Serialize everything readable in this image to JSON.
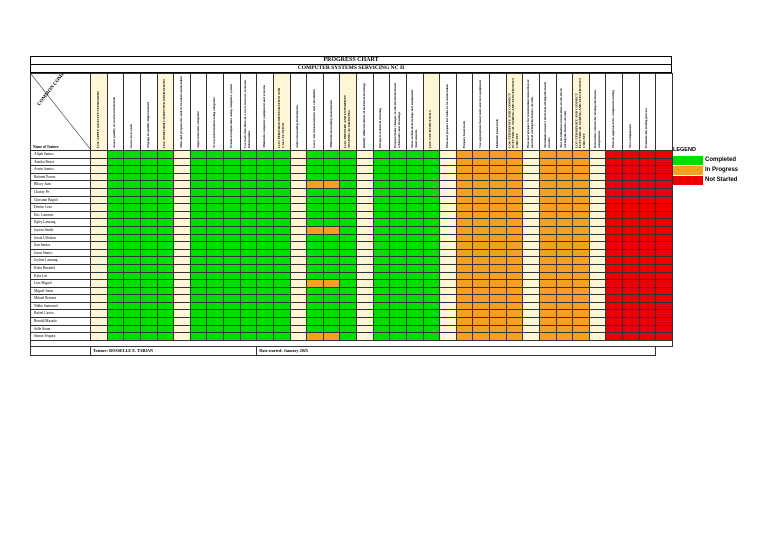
{
  "title": "PROGRESS CHART",
  "subtitle": "COMPUTER SYSTEMS SERVICING NC II",
  "corner_label": "COMMON COMPETENCIES",
  "name_header": "Name of Trainee",
  "columns": [
    {
      "label": "LO1: APPLY QUALITY STANDARDS",
      "unit": true,
      "block": "y"
    },
    {
      "label": "Assess quality of received materials",
      "unit": false,
      "block": "g"
    },
    {
      "label": "Assess own work",
      "unit": false,
      "block": "g"
    },
    {
      "label": "Engage in quality improvement",
      "unit": false,
      "block": "g"
    },
    {
      "label": "LO2: PERFORM COMPUTER OPERATIONS",
      "unit": true,
      "block": "g"
    },
    {
      "label": "Plan and prepare for task to be taken undertaken",
      "unit": false,
      "block": "y"
    },
    {
      "label": "Input data into computer",
      "unit": false,
      "block": "g"
    },
    {
      "label": "Access information using computer",
      "unit": false,
      "block": "g"
    },
    {
      "label": "Produce/output data using computer system",
      "unit": false,
      "block": "g"
    },
    {
      "label": "Use basic functions of a www-browser to locate information",
      "unit": false,
      "block": "g"
    },
    {
      "label": "Maintain computer equipment and systems",
      "unit": false,
      "block": "g"
    },
    {
      "label": "LO3: PERFORM MENSURATION AND CALCULATION",
      "unit": true,
      "block": "g"
    },
    {
      "label": "Select measuring instruments",
      "unit": false,
      "block": "y"
    },
    {
      "label": "Carry out measurements and calculation",
      "unit": false,
      "block": "g"
    },
    {
      "label": "Maintain measuring instruments",
      "unit": false,
      "block": "g"
    },
    {
      "label": "LO4: PREPARE AND INTERPRET TECHNICAL DRAWING",
      "unit": true,
      "block": "g"
    },
    {
      "label": "Identify different kinds of technical drawings",
      "unit": false,
      "block": "y"
    },
    {
      "label": "Interpret technical drawing",
      "unit": false,
      "block": "g"
    },
    {
      "label": "Prepare/make changes to electrical/electronic schematics and drawings",
      "unit": false,
      "block": "g"
    },
    {
      "label": "Store technical drawings and equipment /instruments",
      "unit": false,
      "block": "g"
    },
    {
      "label": "LO5: USE HAND TOOLS",
      "unit": true,
      "block": "g"
    },
    {
      "label": "Plan and prepare for tasks to be undertaken",
      "unit": false,
      "block": "y"
    },
    {
      "label": "Prepare hand tools",
      "unit": false,
      "block": "o"
    },
    {
      "label": "Use appropriate hand tools and test equipment",
      "unit": false,
      "block": "o"
    },
    {
      "label": "Maintain hand tools",
      "unit": false,
      "block": "o"
    },
    {
      "label": "LO6: TERMINATE AND CONNECT ELECTRICAL WIRING AND ELECTRONICS CIRCUIT",
      "unit": true,
      "block": "o"
    },
    {
      "label": "Plan and prepare for termination/connection of electrical wiring/electronics circuits",
      "unit": false,
      "block": "y"
    },
    {
      "label": "Terminate/connect electrical wiring/electronic circuits",
      "unit": false,
      "block": "o"
    },
    {
      "label": "Test termination/connections of electrical wiring/electronics circuits",
      "unit": false,
      "block": "o"
    },
    {
      "label": "LO7: TERMINATE AND CONNECT ELECTRICAL WIRING AND ELECTRONICS CIRCUIT",
      "unit": true,
      "block": "o"
    },
    {
      "label": "Determine criteria for testing electronics components",
      "unit": false,
      "block": "y"
    },
    {
      "label": "Plan an approach for component testing",
      "unit": false,
      "block": "r"
    },
    {
      "label": "Test components",
      "unit": false,
      "block": "r"
    },
    {
      "label": "Evaluate the testing process",
      "unit": false,
      "block": "r"
    },
    {
      "label": "",
      "unit": false,
      "block": "r"
    }
  ],
  "trainees": [
    "Alijah Santos",
    "Annika Reyes",
    "Arwin Santos",
    "Bohemi Porras",
    "Bilsoy Juan",
    "Charity Pe",
    "Christian Bagiol",
    "Denise Cruz",
    "Eric Laurente",
    "Egley Lansang",
    "Jayson Smith",
    "Jessie Ulfishan",
    "Jian Santos",
    "Jonas Santos",
    "Joyline Lansang",
    "Kobe Brnaded",
    "Kyla Lee",
    "Luis Miguel",
    "Miguel Jonas",
    "Mikael Briones",
    "Nikko Santomol",
    "Rafael Castro",
    "Ronald Macado",
    "Selle Sioan",
    "Simon Vergara"
  ],
  "orange_marks": [
    {
      "row": 4,
      "cols": [
        13,
        14
      ]
    },
    {
      "row": 10,
      "cols": [
        13,
        14
      ]
    },
    {
      "row": 17,
      "cols": [
        13,
        14
      ]
    },
    {
      "row": 24,
      "cols": [
        13,
        14
      ]
    }
  ],
  "trainer": "Trainer: ROSSELLE E. TABIAN",
  "date_started": "Date started: January 2025",
  "legend": {
    "title": "LEGEND",
    "items": [
      {
        "label": "Completed",
        "color": "#00e000"
      },
      {
        "label": "In Progress",
        "color": "#f5a020"
      },
      {
        "label": "Not Started",
        "color": "#ee0000"
      }
    ]
  }
}
